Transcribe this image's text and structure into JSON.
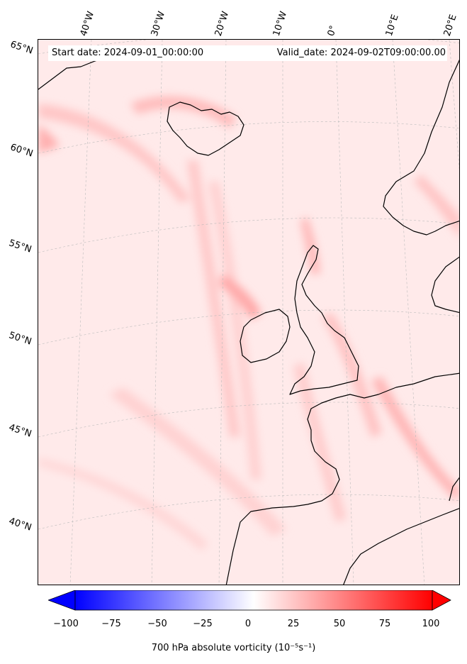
{
  "banner": {
    "start_date": "Start date: 2024-09-01_00:00:00",
    "valid_date": "Valid_date: 2024-09-02T09:00:00.00"
  },
  "longitude_labels": [
    "40°W",
    "30°W",
    "20°W",
    "10°W",
    "0°",
    "10°E",
    "20°E"
  ],
  "latitude_labels": [
    "65°N",
    "60°N",
    "55°N",
    "50°N",
    "45°N",
    "40°N"
  ],
  "colorbar": {
    "ticks": [
      "−100",
      "−75",
      "−50",
      "−25",
      "0",
      "25",
      "50",
      "75",
      "100"
    ],
    "label": "700 hPa absolute vorticity (10⁻⁵s⁻¹)",
    "min_color": "#0000ff",
    "mid_color": "#ffffff",
    "max_color": "#ff0000"
  },
  "colors": {
    "background_field": "#ffeaea",
    "coastline": "#000000"
  }
}
